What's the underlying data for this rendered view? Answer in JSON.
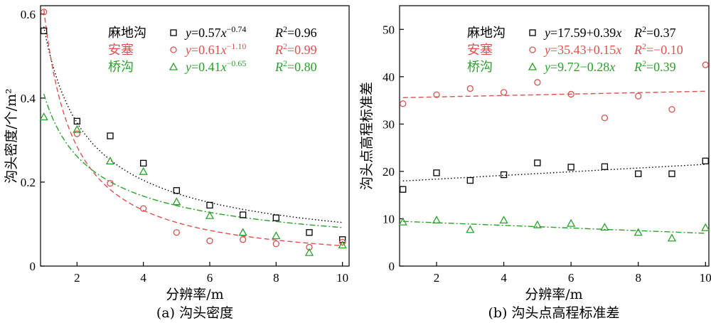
{
  "chart_data": [
    {
      "type": "scatter",
      "caption": "(a) 沟头密度",
      "xlabel": "分辨率/m",
      "ylabel": "沟头密度/个/m²",
      "xlim": [
        0.9,
        10.2
      ],
      "ylim": [
        0,
        0.62
      ],
      "xticks": [
        2,
        4,
        6,
        8,
        10
      ],
      "yticks": [
        0,
        0.2,
        0.4,
        0.6
      ],
      "xtick_labels": [
        "2",
        "4",
        "6",
        "8",
        "10"
      ],
      "ytick_labels": [
        "0",
        "0.2",
        "0.4",
        "0.6"
      ],
      "legend_position": "top-right",
      "series": [
        {
          "name": "麻地沟",
          "marker": "square",
          "color": "#000000",
          "x": [
            1,
            2,
            3,
            4,
            5,
            6,
            7,
            8,
            9,
            10
          ],
          "values": [
            0.56,
            0.345,
            0.31,
            0.245,
            0.18,
            0.145,
            0.122,
            0.115,
            0.08,
            0.063
          ],
          "fit": {
            "kind": "power",
            "a": 0.57,
            "b": -0.74,
            "style": "dotted"
          },
          "equation": {
            "y": "y",
            "lhs": "=0.57",
            "x": "x",
            "exp": "−0.74",
            "r2_sym": "R",
            "r2_sup": "2",
            "r2_val": "=0.96"
          }
        },
        {
          "name": "安塞",
          "marker": "circle",
          "color": "#d9534f",
          "x": [
            1,
            2,
            3,
            4,
            5,
            6,
            7,
            8,
            9,
            10
          ],
          "values": [
            0.605,
            0.315,
            0.197,
            0.137,
            0.08,
            0.06,
            0.063,
            0.053,
            0.045,
            0.057
          ],
          "fit": {
            "kind": "power",
            "a": 0.61,
            "b": -1.1,
            "style": "dashed"
          },
          "equation": {
            "y": "y",
            "lhs": "=0.61",
            "x": "x",
            "exp": "−1.10",
            "r2_sym": "R",
            "r2_sup": "2",
            "r2_val": "=0.99"
          }
        },
        {
          "name": "桥沟",
          "marker": "triangle",
          "color": "#2ca02c",
          "x": [
            1,
            2,
            3,
            4,
            5,
            6,
            7,
            8,
            9,
            10
          ],
          "values": [
            0.355,
            0.325,
            0.25,
            0.225,
            0.153,
            0.12,
            0.08,
            0.072,
            0.032,
            0.05
          ],
          "fit": {
            "kind": "power",
            "a": 0.41,
            "b": -0.65,
            "style": "dashdot"
          },
          "equation": {
            "y": "y",
            "lhs": "=0.41",
            "x": "x",
            "exp": "−0.65",
            "r2_sym": "R",
            "r2_sup": "2",
            "r2_val": "=0.80"
          }
        }
      ]
    },
    {
      "type": "scatter",
      "caption": "(b) 沟头点高程标准差",
      "xlabel": "分辨率/m",
      "ylabel": "沟头点高程标准差",
      "xlim": [
        0.9,
        10.1
      ],
      "ylim": [
        0,
        55
      ],
      "xticks": [
        2,
        4,
        6,
        8,
        10
      ],
      "yticks": [
        0,
        10,
        20,
        30,
        40,
        50
      ],
      "xtick_labels": [
        "2",
        "4",
        "6",
        "8",
        "10"
      ],
      "ytick_labels": [
        "0",
        "10",
        "20",
        "30",
        "40",
        "50"
      ],
      "legend_position": "top-right",
      "series": [
        {
          "name": "麻地沟",
          "marker": "square",
          "color": "#000000",
          "x": [
            1,
            2,
            3,
            4,
            5,
            6,
            7,
            8,
            9,
            10
          ],
          "values": [
            16.2,
            19.7,
            18.1,
            19.3,
            21.8,
            20.9,
            21.0,
            19.5,
            19.5,
            22.2
          ],
          "fit": {
            "kind": "linear",
            "a": 17.59,
            "b": 0.39,
            "style": "dotted"
          },
          "equation": {
            "y": "y",
            "lhs": "=17.59+0.39",
            "x": "x",
            "exp": "",
            "r2_sym": "R",
            "r2_sup": "2",
            "r2_val": "=0.37"
          }
        },
        {
          "name": "安塞",
          "marker": "circle",
          "color": "#d9534f",
          "x": [
            1,
            2,
            3,
            4,
            5,
            6,
            7,
            8,
            9,
            10
          ],
          "values": [
            34.3,
            36.2,
            37.5,
            36.7,
            38.8,
            36.3,
            31.3,
            35.9,
            33.1,
            42.5
          ],
          "fit": {
            "kind": "linear",
            "a": 35.43,
            "b": 0.15,
            "style": "dashed"
          },
          "equation": {
            "y": "y",
            "lhs": "=35.43+0.15",
            "x": "x",
            "exp": "",
            "r2_sym": "R",
            "r2_sup": "2",
            "r2_val": "=−0.10"
          }
        },
        {
          "name": "桥沟",
          "marker": "triangle",
          "color": "#2ca02c",
          "x": [
            1,
            2,
            3,
            4,
            5,
            6,
            7,
            8,
            9,
            10
          ],
          "values": [
            9.3,
            9.7,
            7.7,
            9.7,
            8.7,
            9.0,
            8.2,
            7.1,
            5.9,
            8.1
          ],
          "fit": {
            "kind": "linear",
            "a": 9.72,
            "b": -0.28,
            "style": "dashdot"
          },
          "equation": {
            "y": "y",
            "lhs": "=9.72−0.28",
            "x": "x",
            "exp": "",
            "r2_sym": "R",
            "r2_sup": "2",
            "r2_val": "=0.39"
          }
        }
      ]
    }
  ]
}
